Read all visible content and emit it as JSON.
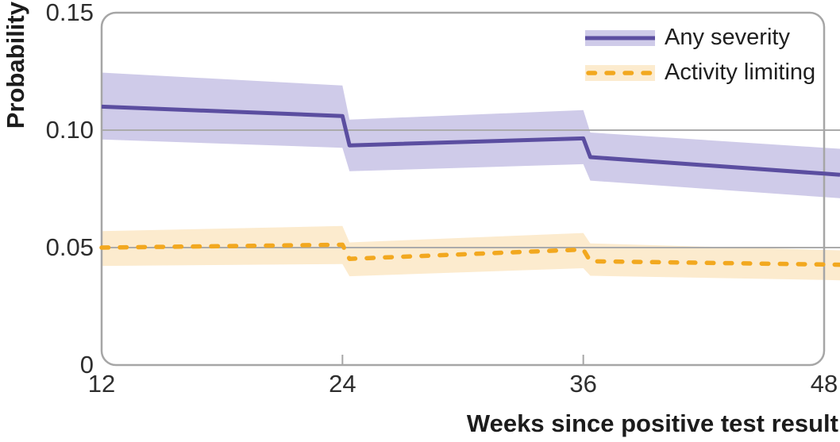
{
  "colors": {
    "background": "#ffffff",
    "grid": "#ababab",
    "border": "#a6a6a6",
    "text": "#262626",
    "any_severity_line": "#5b4ea0",
    "any_severity_band": "#cfcbe9",
    "activity_limiting_line": "#f2a81f",
    "activity_limiting_band": "#fcebce"
  },
  "chart_data": {
    "type": "line",
    "title": "",
    "xlabel": "Weeks since positive test result",
    "ylabel": "Probability",
    "x_axis": {
      "title": "Weeks since positive test result",
      "range": [
        12,
        48
      ],
      "ticks": [
        {
          "label": "12",
          "value": 12
        },
        {
          "label": "24",
          "value": 24
        },
        {
          "label": "36",
          "value": 36
        },
        {
          "label": "48",
          "value": 48
        }
      ],
      "tick_marks": [
        24,
        36
      ]
    },
    "y_axis": {
      "title": "Probability",
      "range": [
        0,
        0.15
      ],
      "ticks": [
        {
          "label": "0.15",
          "value": 0.15
        },
        {
          "label": "0.10",
          "value": 0.1
        },
        {
          "label": "0.05",
          "value": 0.05
        },
        {
          "label": "0",
          "value": 0
        }
      ],
      "gridlines": [
        0.1,
        0.05
      ]
    },
    "legend": {
      "position": "top-right",
      "entries": [
        "Any severity",
        "Activity limiting"
      ]
    },
    "series": [
      {
        "name": "Any severity",
        "line_style": "solid",
        "color": "#5b4ea0",
        "band_color": "#cfcbe9",
        "points": [
          [
            12,
            0.11
          ],
          [
            24,
            0.106
          ],
          [
            24.35,
            0.0935
          ],
          [
            36,
            0.0965
          ],
          [
            36.35,
            0.0885
          ],
          [
            48,
            0.0815
          ]
        ],
        "band_upper": [
          [
            12,
            0.1245
          ],
          [
            24,
            0.119
          ],
          [
            24.35,
            0.1045
          ],
          [
            36,
            0.1085
          ],
          [
            36.35,
            0.099
          ],
          [
            48,
            0.0925
          ]
        ],
        "band_lower": [
          [
            12,
            0.096
          ],
          [
            24,
            0.0925
          ],
          [
            24.35,
            0.0825
          ],
          [
            36,
            0.0855
          ],
          [
            36.35,
            0.0785
          ],
          [
            48,
            0.0715
          ]
        ]
      },
      {
        "name": "Activity limiting",
        "line_style": "dashed",
        "color": "#f2a81f",
        "band_color": "#fcebce",
        "points": [
          [
            12,
            0.05
          ],
          [
            24,
            0.0512
          ],
          [
            24.35,
            0.0452
          ],
          [
            36,
            0.0492
          ],
          [
            36.35,
            0.0442
          ],
          [
            48,
            0.0428
          ]
        ],
        "band_upper": [
          [
            12,
            0.057
          ],
          [
            24,
            0.0592
          ],
          [
            24.35,
            0.0522
          ],
          [
            36,
            0.0562
          ],
          [
            36.35,
            0.0518
          ],
          [
            48,
            0.049
          ]
        ],
        "band_lower": [
          [
            12,
            0.0422
          ],
          [
            24,
            0.043
          ],
          [
            24.35,
            0.0378
          ],
          [
            36,
            0.0412
          ],
          [
            36.35,
            0.038
          ],
          [
            48,
            0.0362
          ]
        ]
      }
    ]
  }
}
